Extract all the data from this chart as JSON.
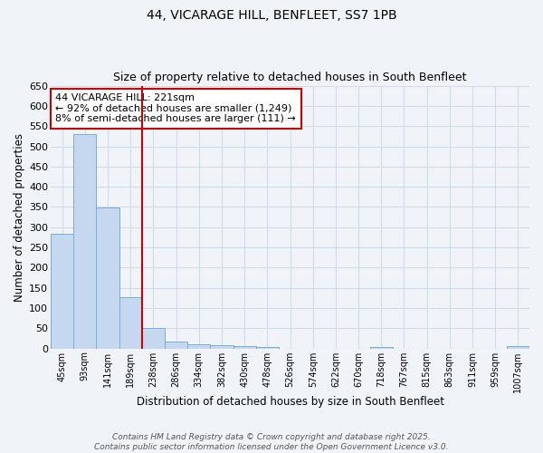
{
  "title": "44, VICARAGE HILL, BENFLEET, SS7 1PB",
  "subtitle": "Size of property relative to detached houses in South Benfleet",
  "xlabel": "Distribution of detached houses by size in South Benfleet",
  "ylabel": "Number of detached properties",
  "categories": [
    "45sqm",
    "93sqm",
    "141sqm",
    "189sqm",
    "238sqm",
    "286sqm",
    "334sqm",
    "382sqm",
    "430sqm",
    "478sqm",
    "526sqm",
    "574sqm",
    "622sqm",
    "670sqm",
    "718sqm",
    "767sqm",
    "815sqm",
    "863sqm",
    "911sqm",
    "959sqm",
    "1007sqm"
  ],
  "values": [
    284,
    530,
    348,
    126,
    50,
    17,
    11,
    8,
    5,
    3,
    0,
    0,
    0,
    0,
    3,
    0,
    0,
    0,
    0,
    0,
    5
  ],
  "bar_color": "#c5d8f0",
  "bar_edge_color": "#7aadd4",
  "vline_x": 4.0,
  "vline_color": "#cc0000",
  "annotation_text": "44 VICARAGE HILL: 221sqm\n← 92% of detached houses are smaller (1,249)\n8% of semi-detached houses are larger (111) →",
  "annotation_box_color": "#cc0000",
  "ylim": [
    0,
    650
  ],
  "yticks": [
    0,
    50,
    100,
    150,
    200,
    250,
    300,
    350,
    400,
    450,
    500,
    550,
    600,
    650
  ],
  "background_color": "#f0f4f8",
  "grid_color": "#d0dce8",
  "footer": "Contains HM Land Registry data © Crown copyright and database right 2025.\nContains public sector information licensed under the Open Government Licence v3.0."
}
